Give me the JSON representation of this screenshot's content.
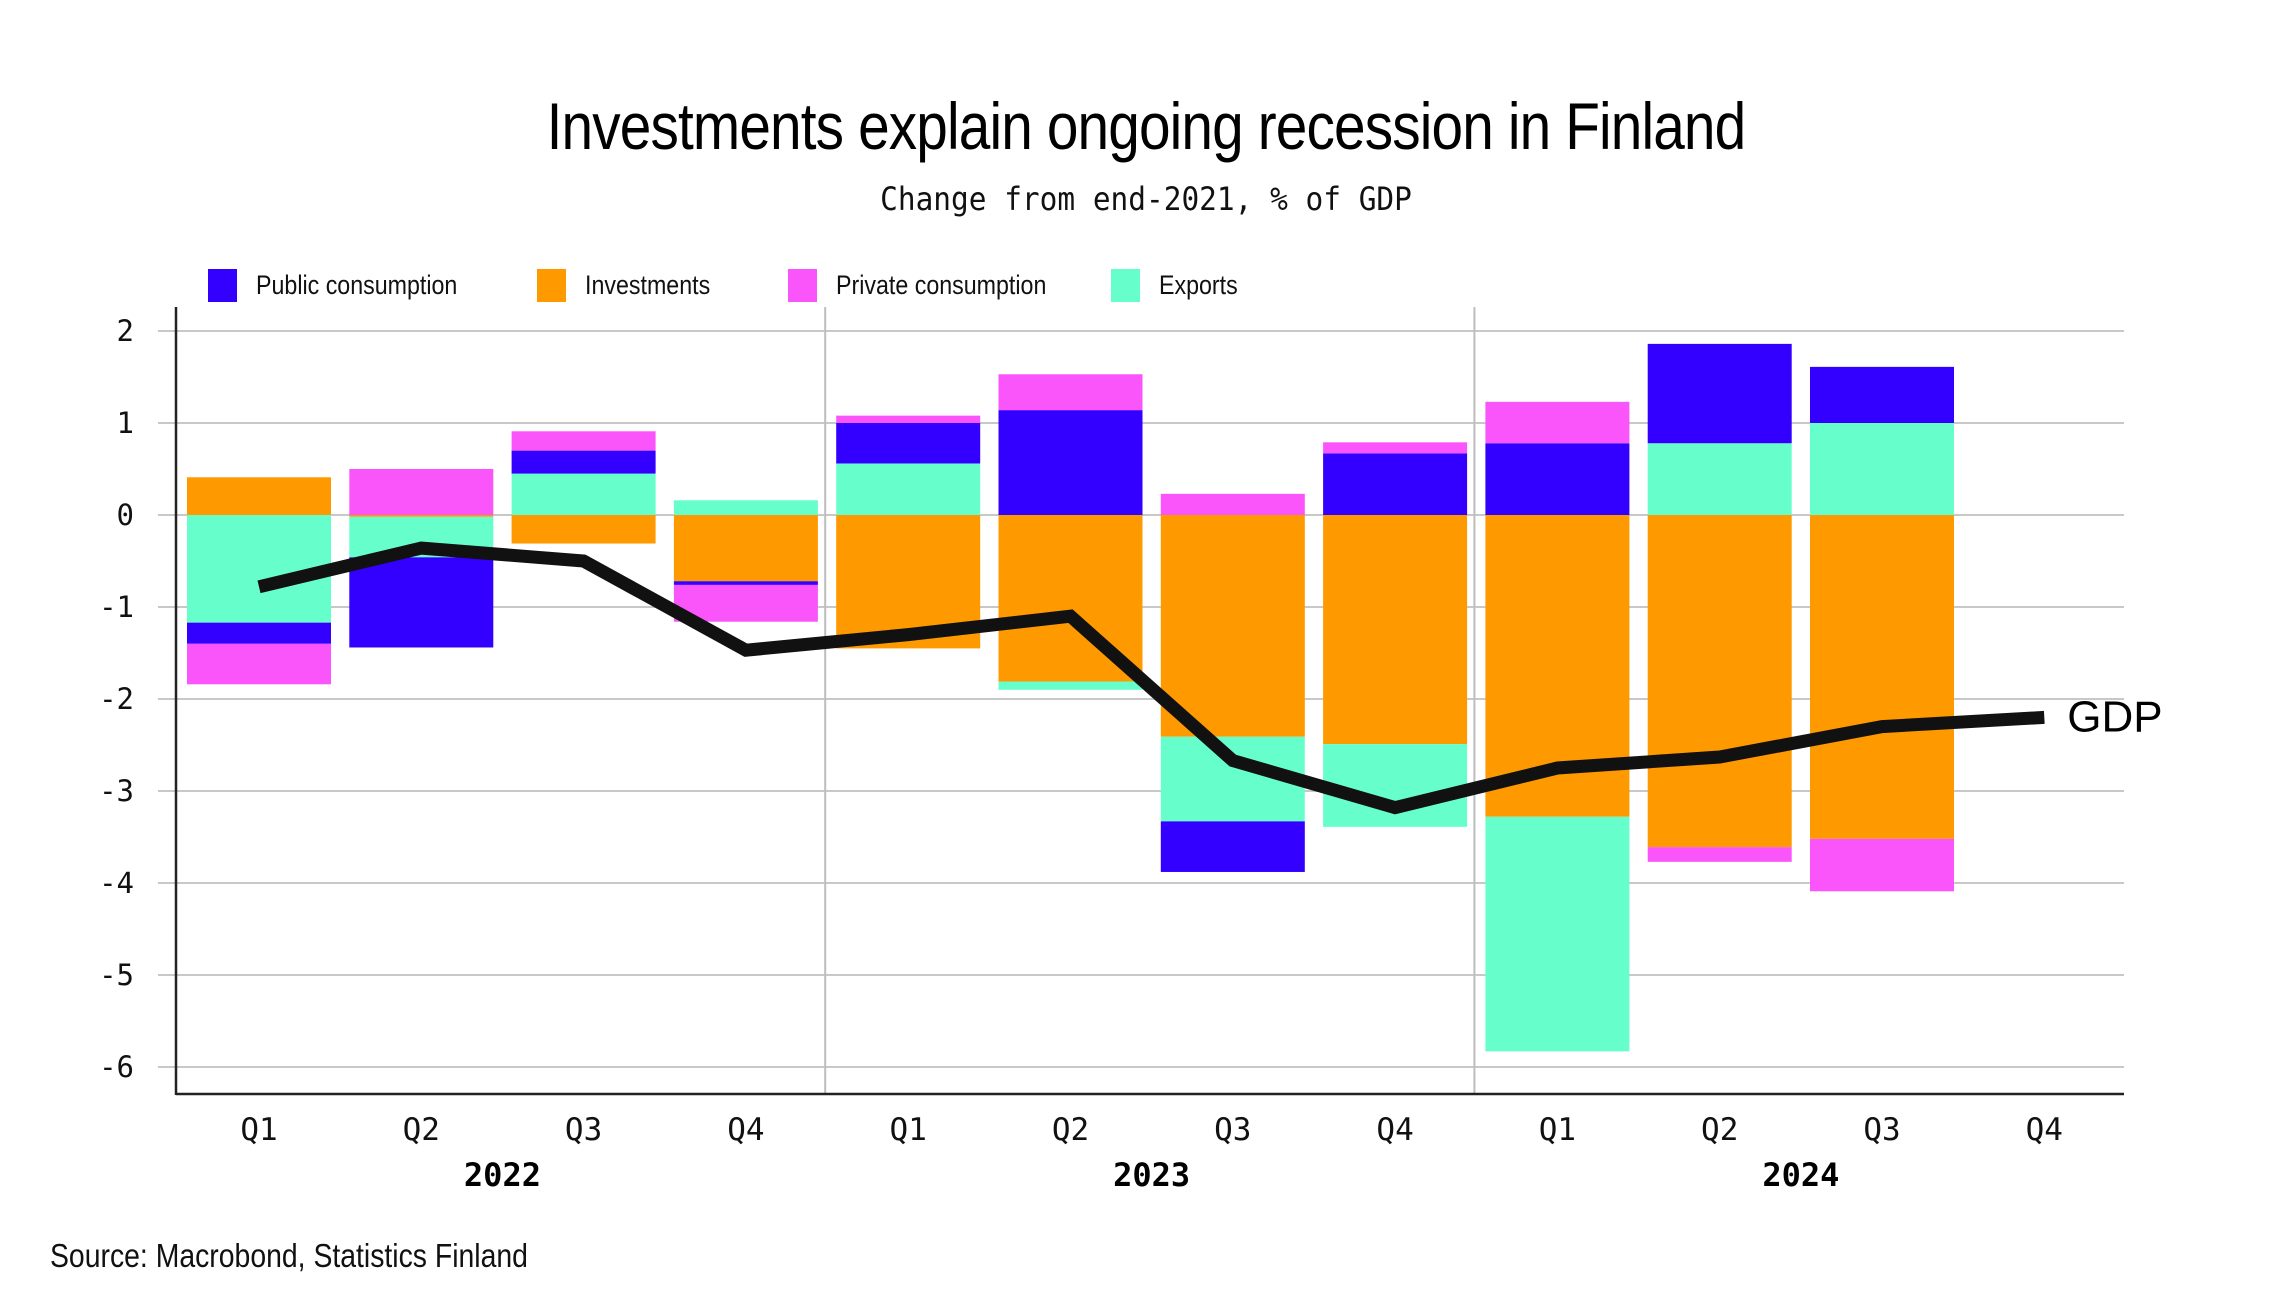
{
  "chart_data": {
    "type": "bar",
    "stacked": true,
    "title": "Investments explain ongoing recession in Finland",
    "subtitle": "Change from end-2021, % of GDP",
    "source": "Source: Macrobond, Statistics Finland",
    "xlabel": "",
    "ylabel": "",
    "ylim": [
      -6,
      2
    ],
    "yticks": [
      "2",
      "1",
      "0",
      "-1",
      "-2",
      "-3",
      "-4",
      "-5",
      "-6"
    ],
    "ytick_values": [
      2,
      1,
      0,
      -1,
      -2,
      -3,
      -4,
      -5,
      -6
    ],
    "grid": true,
    "legend_position": "top-left",
    "categories": [
      "Q1",
      "Q2",
      "Q3",
      "Q4",
      "Q1",
      "Q2",
      "Q3",
      "Q4",
      "Q1",
      "Q2",
      "Q3",
      "Q4"
    ],
    "years": [
      {
        "label": "2022",
        "start": 0,
        "end": 3
      },
      {
        "label": "2023",
        "start": 4,
        "end": 7
      },
      {
        "label": "2024",
        "start": 8,
        "end": 11
      }
    ],
    "stack_order": [
      "investments",
      "exports",
      "public",
      "private"
    ],
    "series": [
      {
        "key": "public",
        "name": "Public consumption",
        "color": "#3300FF",
        "values": [
          -0.23,
          -0.98,
          0.25,
          -0.04,
          0.44,
          1.14,
          -0.55,
          0.67,
          0.78,
          1.08,
          0.61,
          null
        ]
      },
      {
        "key": "investments",
        "name": "Investments",
        "color": "#FF9900",
        "values": [
          0.41,
          -0.02,
          -0.31,
          -0.72,
          -1.45,
          -1.81,
          -2.41,
          -2.49,
          -3.28,
          -3.61,
          -3.52,
          null
        ]
      },
      {
        "key": "private",
        "name": "Private consumption",
        "color": "#FA55FA",
        "values": [
          -0.44,
          0.5,
          0.21,
          -0.4,
          0.08,
          0.39,
          0.23,
          0.12,
          0.45,
          -0.16,
          -0.57,
          null
        ]
      },
      {
        "key": "exports",
        "name": "Exports",
        "color": "#66FFCC",
        "values": [
          -1.17,
          -0.44,
          0.45,
          0.16,
          0.56,
          -0.09,
          -0.92,
          -0.9,
          -2.55,
          0.78,
          1.0,
          null
        ]
      }
    ],
    "line": {
      "name": "GDP",
      "label": "GDP",
      "color": "#111111",
      "values": [
        -0.78,
        -0.36,
        -0.5,
        -1.47,
        -1.3,
        -1.1,
        -2.67,
        -3.18,
        -2.75,
        -2.63,
        -2.3,
        -2.2
      ]
    }
  }
}
